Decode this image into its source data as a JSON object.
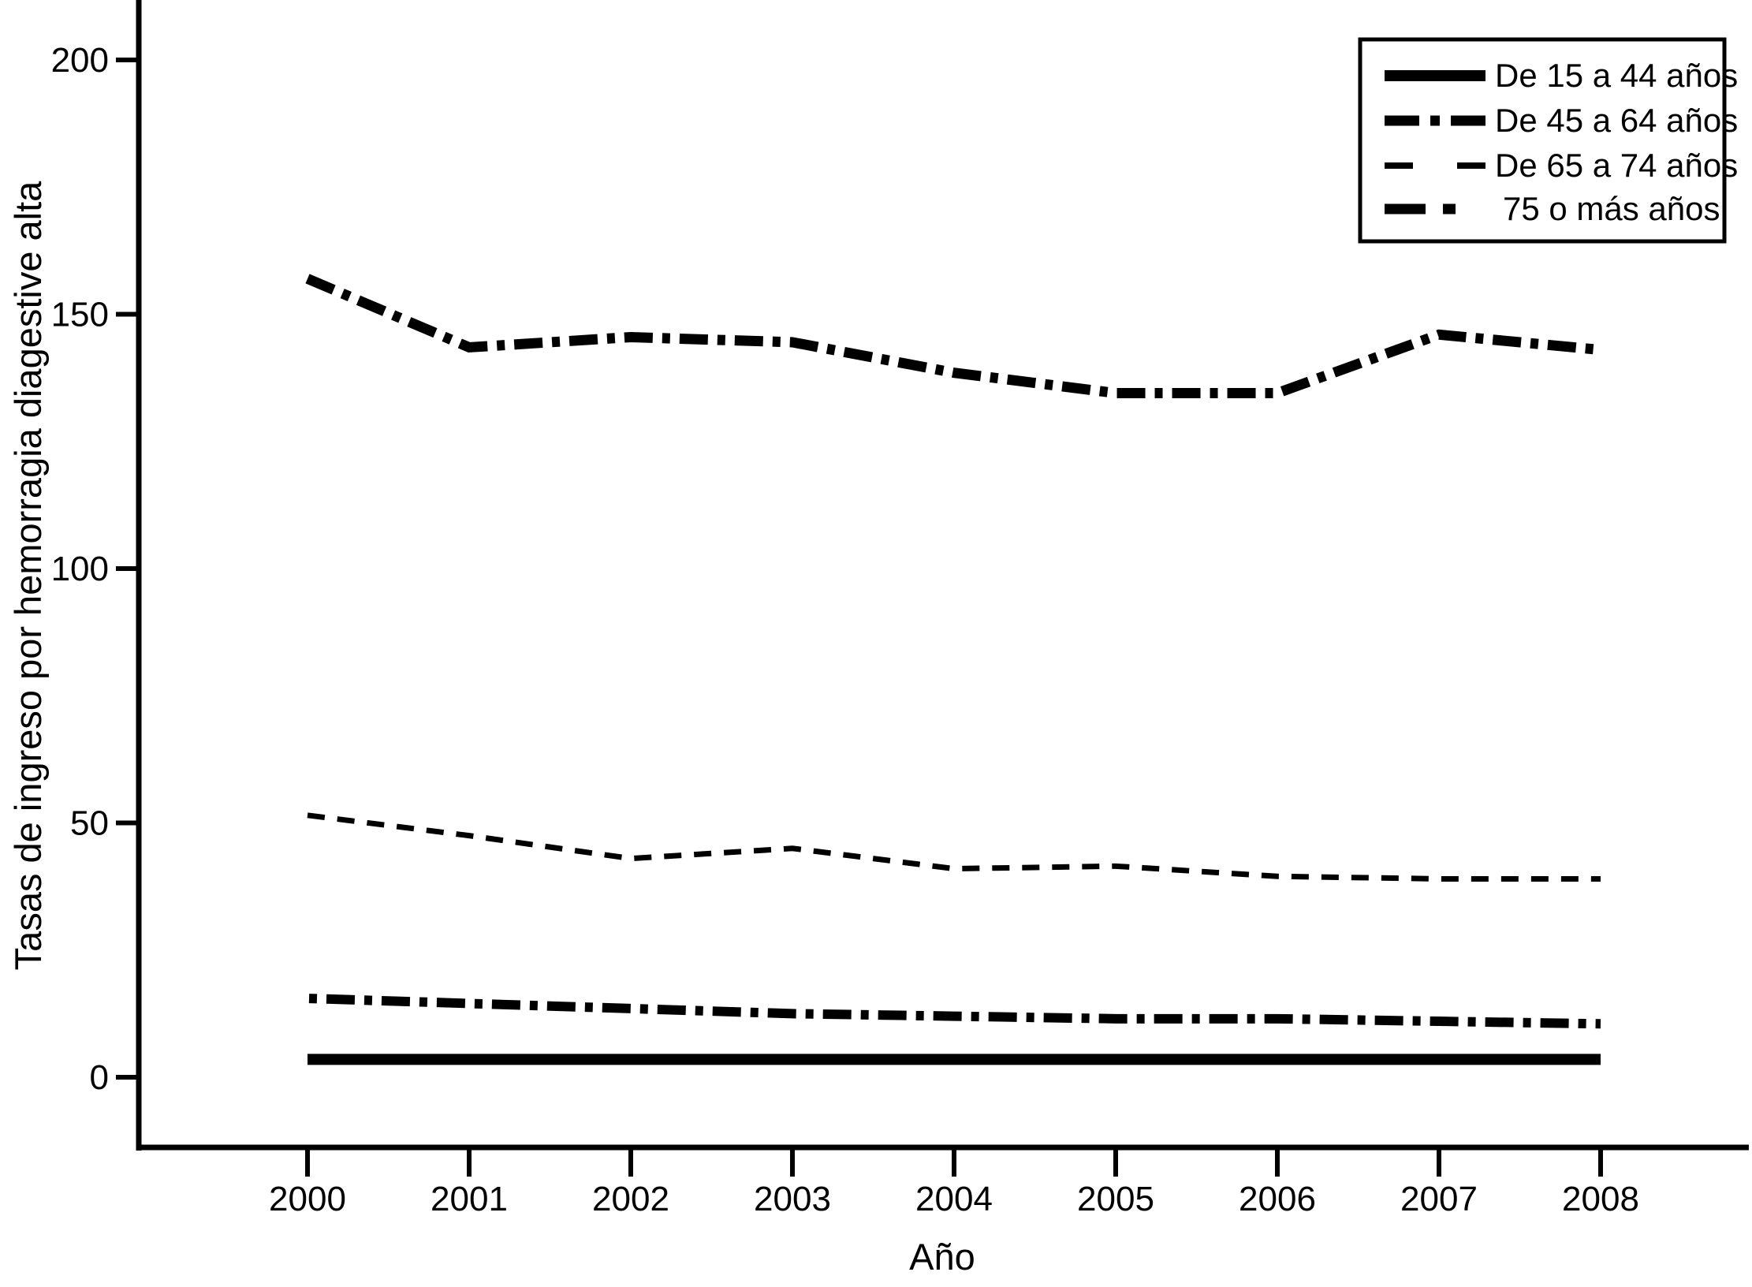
{
  "figure": {
    "background": "#ffffff",
    "ink_color": "#000000"
  },
  "chart_data": {
    "type": "line",
    "title": "",
    "xlabel": "Año",
    "ylabel": "Tasas de ingreso por hemorragia diagestive alta",
    "x": [
      2000,
      2001,
      2002,
      2003,
      2004,
      2005,
      2006,
      2007,
      2008
    ],
    "xtick_labels": [
      "2000",
      "2001",
      "2002",
      "2003",
      "2004",
      "2005",
      "2006",
      "2007",
      "2008"
    ],
    "yticks": [
      0,
      50,
      100,
      150,
      200
    ],
    "ylim": [
      0,
      210
    ],
    "grid": false,
    "legend_position": "top-right",
    "series": [
      {
        "name": "De 15 a 44 años",
        "dash": "solid",
        "width": 14,
        "values": [
          3.5,
          3.5,
          3.5,
          3.5,
          3.5,
          3.5,
          3.5,
          3.5,
          3.5
        ]
      },
      {
        "name": "De 45 a 64 años",
        "dash": "dash-dot",
        "width": 12,
        "values": [
          15.5,
          14.5,
          13.5,
          12.5,
          12,
          11.5,
          11.5,
          11,
          10.5
        ]
      },
      {
        "name": "De 65 a 74 años",
        "dash": "dashed",
        "width": 7,
        "values": [
          51.5,
          47.5,
          43,
          45,
          41,
          41.5,
          39.5,
          39,
          39
        ]
      },
      {
        "name": "75 o más años",
        "dash": "dash-dot",
        "width": 13,
        "values": [
          157,
          143.5,
          145.5,
          144.5,
          138.5,
          134.5,
          134.5,
          146,
          143
        ]
      }
    ]
  }
}
